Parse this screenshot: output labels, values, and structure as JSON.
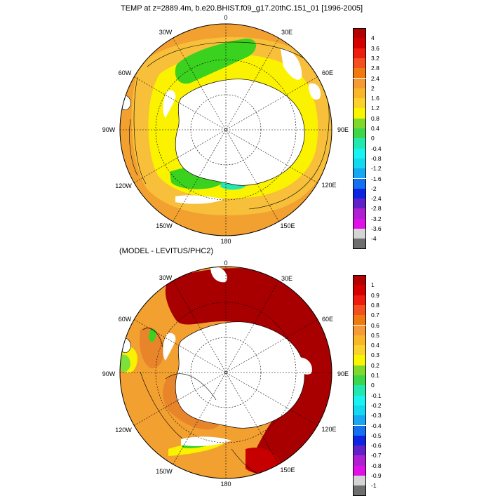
{
  "panels": [
    {
      "title": "TEMP at z=2889.4m, b.e20.BHIST.f09_g17.20thC.151_01 [1996-2005]",
      "lon_labels": [
        "0",
        "30E",
        "60E",
        "90E",
        "120E",
        "150E",
        "180",
        "150W",
        "120W",
        "90W",
        "60W",
        "30W"
      ],
      "colorbar": {
        "labels": [
          "4",
          "3.6",
          "3.2",
          "2.8",
          "2.4",
          "2",
          "1.6",
          "1.2",
          "0.8",
          "0.4",
          "0",
          "-0.4",
          "-0.8",
          "-1.2",
          "-1.6",
          "-2",
          "-2.4",
          "-2.8",
          "-3.2",
          "-3.6",
          "-4"
        ],
        "colors": [
          "#b30000",
          "#d40000",
          "#ee1c0c",
          "#f4501f",
          "#f07a10",
          "#f59a35",
          "#f8b628",
          "#fbd22c",
          "#f9f500",
          "#7fd92c",
          "#3dd64b",
          "#22e8b0",
          "#18f2f0",
          "#12d8f0",
          "#16a8f2",
          "#1470f0",
          "#0d24e3",
          "#6022c8",
          "#b020d2",
          "#e010e8",
          "#d4d4d4",
          "#6e6e6e"
        ]
      }
    },
    {
      "title": "(MODEL - LEVITUS/PHC2)",
      "lon_labels": [
        "0",
        "30E",
        "60E",
        "90E",
        "120E",
        "150E",
        "180",
        "150W",
        "120W",
        "90W",
        "60W",
        "30W"
      ],
      "colorbar": {
        "labels": [
          "1",
          "0.9",
          "0.8",
          "0.7",
          "0.6",
          "0.5",
          "0.4",
          "0.3",
          "0.2",
          "0.1",
          "0",
          "-0.1",
          "-0.2",
          "-0.3",
          "-0.4",
          "-0.5",
          "-0.6",
          "-0.7",
          "-0.8",
          "-0.9",
          "-1"
        ],
        "colors": [
          "#b30000",
          "#d40000",
          "#ee1c0c",
          "#f4501f",
          "#f07a10",
          "#f59a35",
          "#f8b628",
          "#fbd22c",
          "#f9f500",
          "#7fd92c",
          "#3dd64b",
          "#22e8b0",
          "#18f2f0",
          "#12d8f0",
          "#16a8f2",
          "#1470f0",
          "#0d24e3",
          "#6022c8",
          "#b020d2",
          "#e010e8",
          "#d4d4d4",
          "#6e6e6e"
        ]
      }
    }
  ],
  "colors": {
    "dark_red": "#a80000",
    "red": "#d21a00",
    "orange": "#f2a030",
    "dark_orange": "#e8842a",
    "light_orange": "#f7bf3a",
    "yellow": "#fbf200",
    "green": "#3ad21e",
    "lime": "#7ee03a",
    "cyan": "#20e6b0",
    "land": "#ffffff"
  }
}
